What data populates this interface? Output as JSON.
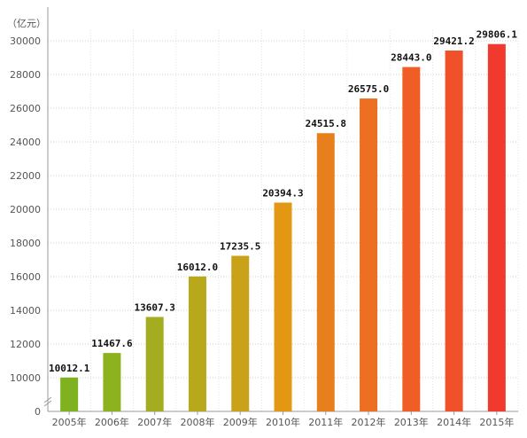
{
  "chart_data": {
    "type": "bar",
    "unit_label": "（亿元）",
    "categories": [
      "2005年",
      "2006年",
      "2007年",
      "2008年",
      "2009年",
      "2010年",
      "2011年",
      "2012年",
      "2013年",
      "2014年",
      "2015年"
    ],
    "values": [
      10012.1,
      11467.6,
      13607.3,
      16012.0,
      17235.5,
      20394.3,
      24515.8,
      26575.0,
      28443.0,
      29421.2,
      29806.1
    ],
    "data_labels": [
      "10012.1",
      "11467.6",
      "13607.3",
      "16012.0",
      "17235.5",
      "20394.3",
      "24515.8",
      "26575.0",
      "28443.0",
      "29421.2",
      "29806.1"
    ],
    "y_ticks": [
      0,
      10000,
      12000,
      14000,
      16000,
      18000,
      20000,
      22000,
      24000,
      26000,
      28000,
      30000
    ],
    "y_tick_labels": [
      "0",
      "10000",
      "12000",
      "14000",
      "16000",
      "18000",
      "20000",
      "22000",
      "24000",
      "26000",
      "28000",
      "30000"
    ],
    "y_axis_break": true,
    "ylim": [
      0,
      31000
    ],
    "grid": true,
    "bar_colors": [
      "#7fb21e",
      "#8cb21e",
      "#a3ad1f",
      "#b8a81c",
      "#c9a21a",
      "#e29812",
      "#e77f1d",
      "#ec6f22",
      "#ee5e26",
      "#f0502a",
      "#f03a2d"
    ]
  }
}
